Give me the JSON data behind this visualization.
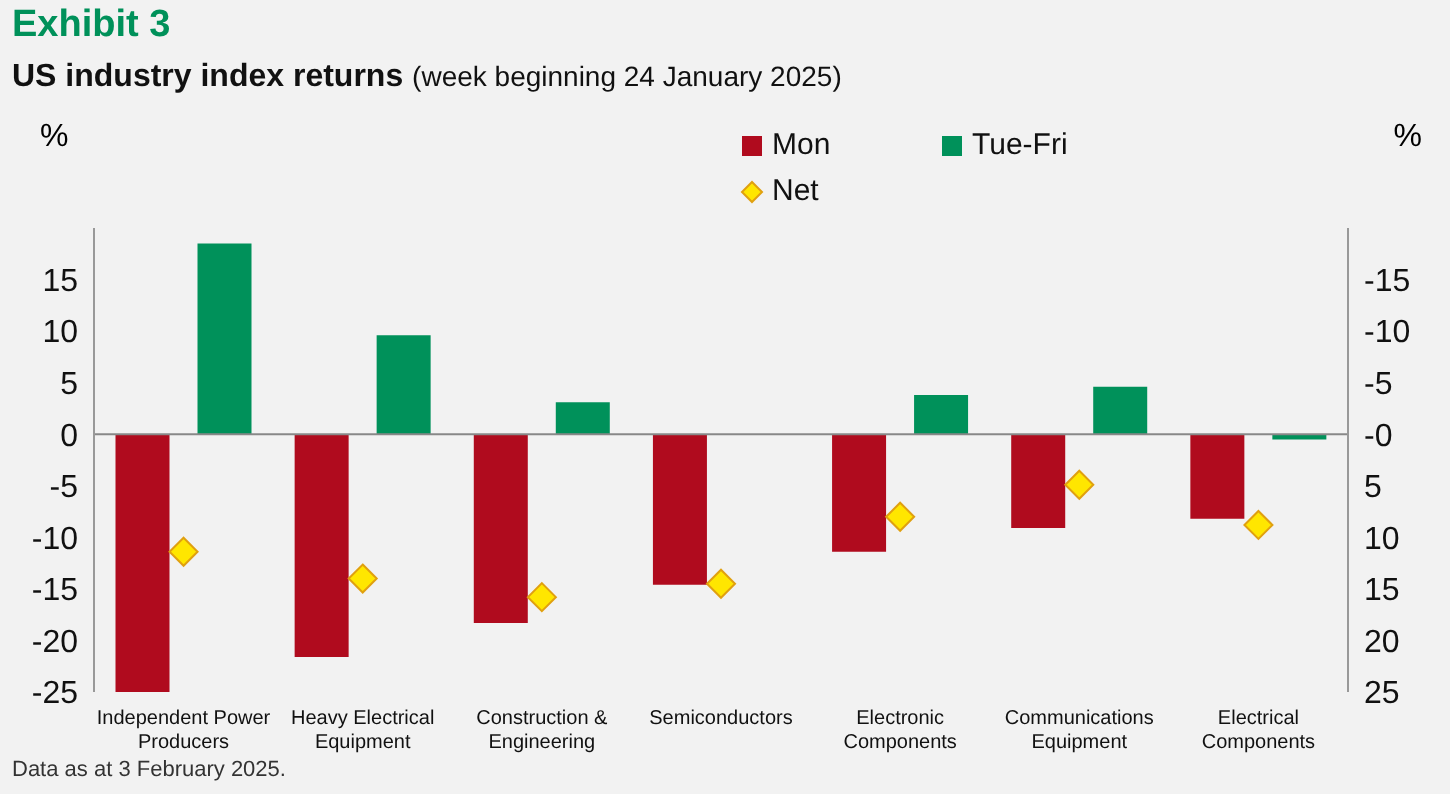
{
  "chart_data": {
    "type": "bar",
    "title": "Exhibit 3",
    "subtitle": "US industry index returns (week beginning 24 January 2025)",
    "categories": [
      "Independent Power Producers",
      "Heavy Electrical Equipment",
      "Construction & Engineering",
      "Semiconductors",
      "Electronic Components",
      "Communications Equipment",
      "Electrical Components"
    ],
    "series": [
      {
        "name": "Mon",
        "color": "#b00b1e",
        "values": [
          -25.0,
          -21.6,
          -18.3,
          -14.6,
          -11.4,
          -9.1,
          -8.2
        ]
      },
      {
        "name": "Tue-Fri",
        "color": "#00915a",
        "values": [
          18.5,
          9.6,
          3.1,
          null,
          3.8,
          4.6,
          -0.5
        ]
      },
      {
        "name": "Net",
        "type": "scatter",
        "color": "#ffe600",
        "marker": "diamond",
        "values": [
          -11.4,
          -14.0,
          -15.8,
          -14.5,
          -8.0,
          -4.9,
          -8.8
        ]
      }
    ],
    "ylabel": "%",
    "y2label": "%",
    "ylim": [
      -25,
      20
    ],
    "yticks": [
      -25,
      -20,
      -15,
      -10,
      -5,
      0,
      5,
      10,
      15
    ],
    "y2lim": [
      25,
      -20
    ],
    "y2ticks": [
      25,
      20,
      15,
      10,
      5,
      {
        "value": 0,
        "label": "-0"
      },
      -5,
      -10,
      -15
    ],
    "legend": "top",
    "ref_lines": [
      {
        "axis": "y",
        "value": 0,
        "color": "#888888"
      }
    ],
    "annotations": [
      "Data as at 3 February 2025."
    ]
  }
}
